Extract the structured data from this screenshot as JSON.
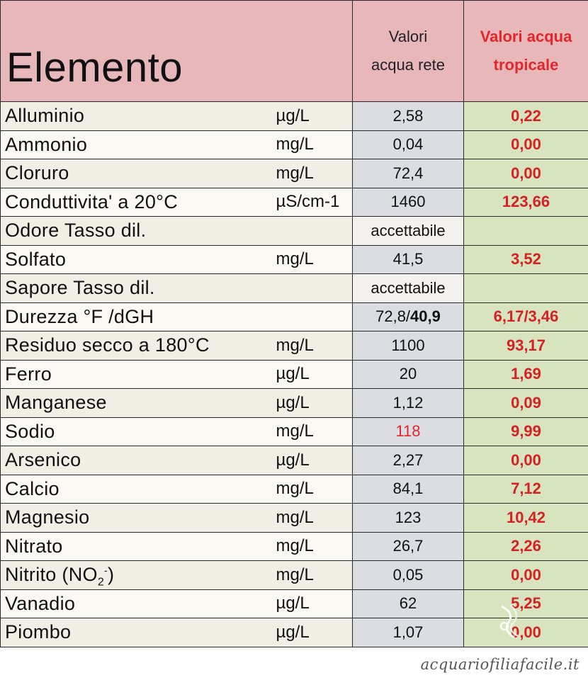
{
  "header": {
    "elemento": "Elemento",
    "rete_line1": "Valori",
    "rete_line2": "acqua rete",
    "trop_line1": "Valori acqua",
    "trop_line2": "tropicale"
  },
  "rows": [
    {
      "name": "Alluminio",
      "unit": "µg/L",
      "rete": "2,58",
      "trop": "0,22"
    },
    {
      "name": "Ammonio",
      "unit": "mg/L",
      "rete": "0,04",
      "trop": "0,00"
    },
    {
      "name": "Cloruro",
      "unit": "mg/L",
      "rete": "72,4",
      "trop": "0,00"
    },
    {
      "name": "Conduttivita' a 20°C",
      "unit": "µS/cm-1",
      "rete": "1460",
      "trop": "123,66"
    },
    {
      "name": "Odore Tasso dil.",
      "unit": "",
      "rete": "accettabile",
      "trop": ""
    },
    {
      "name": "Solfato",
      "unit": "mg/L",
      "rete": "41,5",
      "trop": "3,52"
    },
    {
      "name": "Sapore Tasso dil.",
      "unit": "",
      "rete": "accettabile",
      "trop": ""
    },
    {
      "name": "Durezza °F /dGH",
      "unit": "",
      "rete_a": "72,8/",
      "rete_b": "40,9",
      "trop": "6,17/3,46"
    },
    {
      "name": "Residuo secco a 180°C",
      "unit": "mg/L",
      "rete": "1100",
      "trop": "93,17"
    },
    {
      "name": "Ferro",
      "unit": "µg/L",
      "rete": "20",
      "trop": "1,69"
    },
    {
      "name": "Manganese",
      "unit": "µg/L",
      "rete": "1,12",
      "trop": "0,09"
    },
    {
      "name": "Sodio",
      "unit": "mg/L",
      "rete": "118",
      "trop": "9,99"
    },
    {
      "name": "Arsenico",
      "unit": "µg/L",
      "rete": "2,27",
      "trop": "0,00"
    },
    {
      "name": "Calcio",
      "unit": "mg/L",
      "rete": "84,1",
      "trop": "7,12"
    },
    {
      "name": "Magnesio",
      "unit": "mg/L",
      "rete": "123",
      "trop": "10,42"
    },
    {
      "name": "Nitrato",
      "unit": "mg/L",
      "rete": "26,7",
      "trop": "2,26"
    },
    {
      "name_a": "Nitrito (NO",
      "name_sub": "2",
      "name_sup": "-",
      "name_b": ")",
      "unit": "mg/L",
      "rete": "0,05",
      "trop": "0,00"
    },
    {
      "name": "Vanadio",
      "unit": "µg/L",
      "rete": "62",
      "trop": "5,25"
    },
    {
      "name": "Piombo",
      "unit": "µg/L",
      "rete": "1,07",
      "trop": "0,00"
    }
  ],
  "watermark": "acquariofiliafacile.it",
  "colors": {
    "header_bg": "#e8b7ba",
    "rete_bg": "#dcdde3",
    "trop_bg": "#d7e4bd",
    "trop_text": "#d62024",
    "highlight_red": "#e4262b"
  },
  "icons": {
    "watermark_logo": "fish-logo-icon"
  }
}
